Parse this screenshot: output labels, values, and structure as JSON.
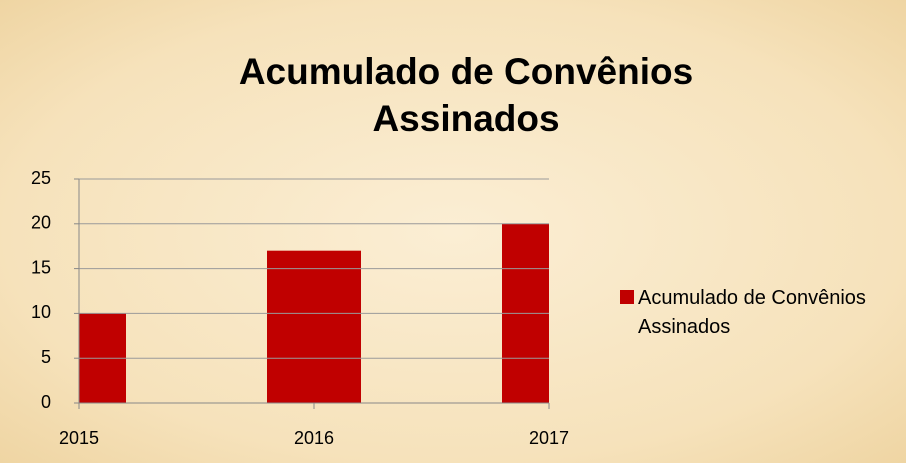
{
  "chart_data": {
    "type": "bar",
    "title": "Acumulado de Convênios Assinados",
    "x": [
      2015,
      2016,
      2017
    ],
    "series": [
      {
        "name": "Acumulado de Convênios Assinados",
        "color": "#c00000",
        "values": [
          10,
          17,
          20
        ]
      }
    ],
    "xlim": [
      2015,
      2017
    ],
    "xticks": [
      2015,
      2016,
      2017
    ],
    "ylim": [
      0,
      25
    ],
    "yticks": [
      0,
      5,
      10,
      15,
      20,
      25
    ],
    "grid": true,
    "legend": "right"
  }
}
